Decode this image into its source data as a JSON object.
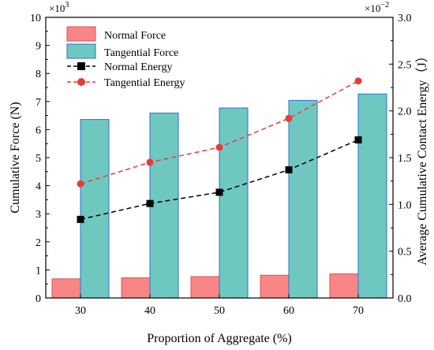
{
  "chart_data": {
    "type": "bar",
    "categories": [
      "30",
      "40",
      "50",
      "60",
      "70"
    ],
    "xlabel": "Proportion of Aggregate (%)",
    "ylabel": "Cumulative Force (N)",
    "y2label": "Average Cumulative Contact Energy（J）",
    "ylim": [
      0,
      10
    ],
    "y2lim": [
      0,
      3.0
    ],
    "yticks": [
      "0",
      "1",
      "2",
      "3",
      "4",
      "5",
      "6",
      "7",
      "8",
      "9",
      "10"
    ],
    "y2ticks": [
      "0.0",
      "0.5",
      "1.0",
      "1.5",
      "2.0",
      "2.5",
      "3.0"
    ],
    "y_multiplier": "×10",
    "y_multiplier_exp": "3",
    "y2_multiplier": "×10",
    "y2_multiplier_exp": "−2",
    "legend_position": "top-left",
    "series": [
      {
        "name": "Normal Force",
        "kind": "bar",
        "axis": "left",
        "color": "#f98686",
        "edge": "#e05050",
        "values": [
          0.68,
          0.72,
          0.76,
          0.81,
          0.86
        ]
      },
      {
        "name": "Tangential Force",
        "kind": "bar",
        "axis": "left",
        "color": "#6fc8c0",
        "edge": "#2e6fd6",
        "values": [
          6.36,
          6.59,
          6.77,
          7.04,
          7.27
        ]
      },
      {
        "name": "Normal Energy",
        "kind": "line",
        "axis": "right",
        "color": "#000000",
        "dash": "dashed",
        "marker": "square",
        "values": [
          0.84,
          1.01,
          1.13,
          1.37,
          1.69
        ]
      },
      {
        "name": "Tangential Energy",
        "kind": "line",
        "axis": "right",
        "color": "#e83a3a",
        "dash": "dashed",
        "marker": "circle",
        "values": [
          1.22,
          1.45,
          1.61,
          1.92,
          2.32
        ]
      }
    ]
  }
}
